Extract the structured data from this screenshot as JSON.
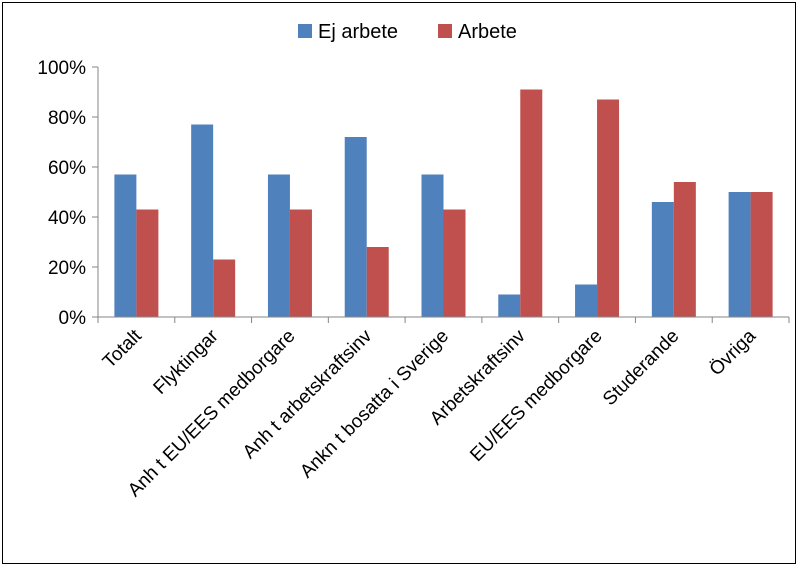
{
  "chart_data": {
    "type": "bar",
    "categories": [
      "Totalt",
      "Flyktingar",
      "Anh t EU/EES medborgare",
      "Anh t arbetskraftsinv",
      "Ankn t bosatta i Sverige",
      "Arbetskraftsinv",
      "EU/EES medborgare",
      "Studerande",
      "Övriga"
    ],
    "series": [
      {
        "name": "Ej arbete",
        "color": "#4F81BD",
        "values": [
          57,
          77,
          57,
          72,
          57,
          9,
          13,
          46,
          50
        ]
      },
      {
        "name": "Arbete",
        "color": "#C0504D",
        "values": [
          43,
          23,
          43,
          28,
          43,
          91,
          87,
          54,
          50
        ]
      }
    ],
    "yticks": [
      "0%",
      "20%",
      "40%",
      "60%",
      "80%",
      "100%"
    ],
    "ylim": [
      0,
      100
    ],
    "legend_position": "top",
    "grid": false
  }
}
